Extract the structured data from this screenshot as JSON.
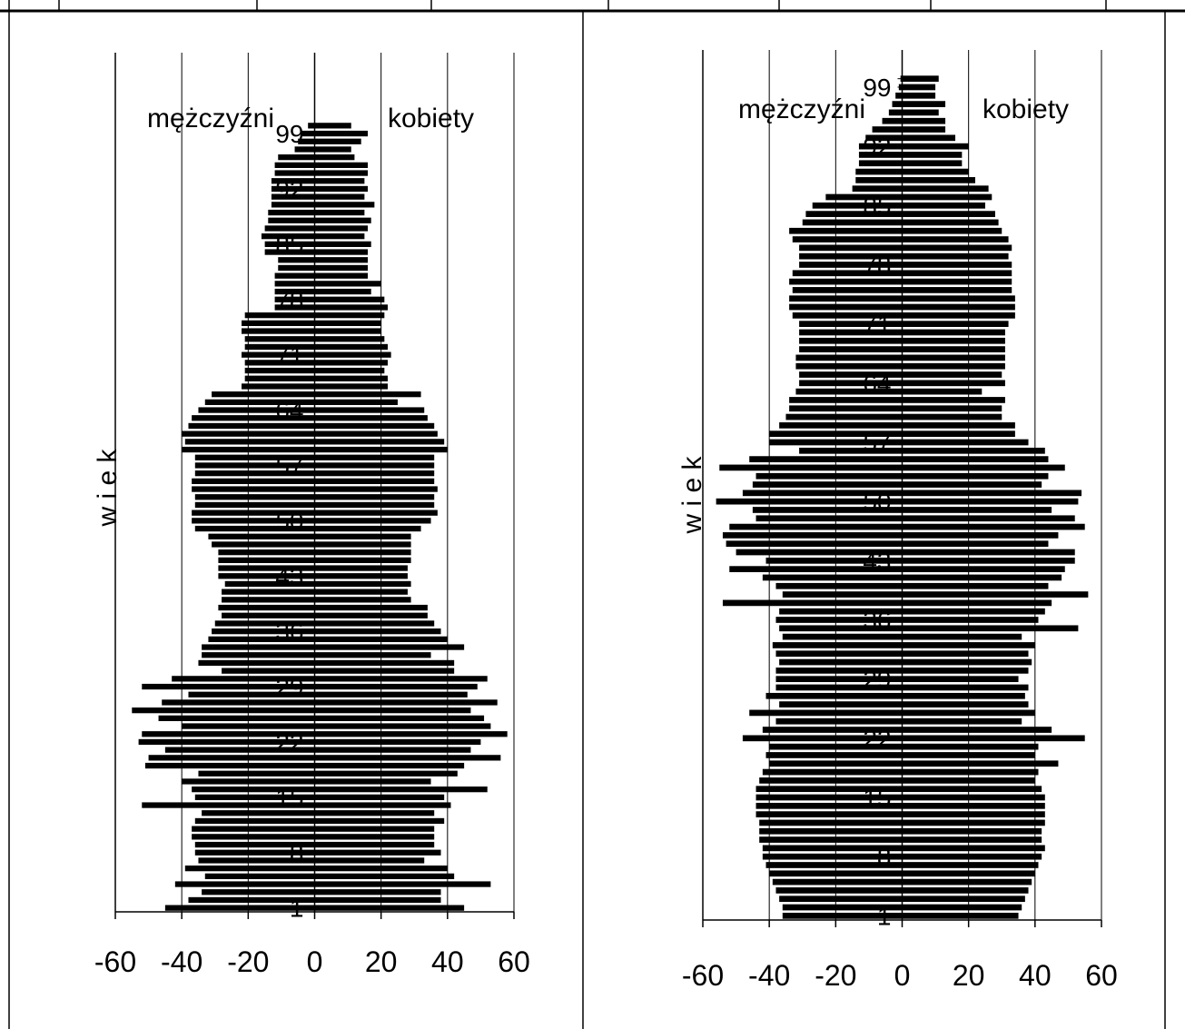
{
  "chart_data": [
    {
      "type": "bar",
      "orientation": "horizontal",
      "title": "",
      "ylabel": "w i e k",
      "xlabel": "",
      "xlim": [
        -60,
        60
      ],
      "xticks": [
        -60,
        -40,
        -20,
        0,
        20,
        40,
        60
      ],
      "ytick_labels": [
        "1",
        "8",
        "15",
        "22",
        "29",
        "36",
        "43",
        "50",
        "57",
        "64",
        "71",
        "78",
        "85",
        "92",
        "99"
      ],
      "grid": "vertical",
      "annotations": [
        "mężczyźni",
        "kobiety"
      ],
      "ages": [
        1,
        2,
        3,
        4,
        5,
        6,
        7,
        8,
        9,
        10,
        11,
        12,
        13,
        14,
        15,
        16,
        17,
        18,
        19,
        20,
        21,
        22,
        23,
        24,
        25,
        26,
        27,
        28,
        29,
        30,
        31,
        32,
        33,
        34,
        35,
        36,
        37,
        38,
        39,
        40,
        41,
        42,
        43,
        44,
        45,
        46,
        47,
        48,
        49,
        50,
        51,
        52,
        53,
        54,
        55,
        56,
        57,
        58,
        59,
        60,
        61,
        62,
        63,
        64,
        65,
        66,
        67,
        68,
        69,
        70,
        71,
        72,
        73,
        74,
        75,
        76,
        77,
        78,
        79,
        80,
        81,
        82,
        83,
        84,
        85,
        86,
        87,
        88,
        89,
        90,
        91,
        92,
        93,
        94,
        95,
        96,
        97,
        98,
        99,
        100
      ],
      "series": [
        {
          "name": "mężczyźni",
          "values": [
            -45,
            -38,
            -34,
            -42,
            -33,
            -39,
            -35,
            -36,
            -36,
            -37,
            -37,
            -36,
            -34,
            -52,
            -36,
            -37,
            -40,
            -35,
            -51,
            -50,
            -45,
            -53,
            -52,
            -40,
            -47,
            -55,
            -46,
            -38,
            -52,
            -43,
            -28,
            -35,
            -34,
            -34,
            -32,
            -31,
            -30,
            -28,
            -29,
            -28,
            -28,
            -27,
            -29,
            -29,
            -29,
            -29,
            -31,
            -32,
            -36,
            -37,
            -37,
            -36,
            -36,
            -37,
            -37,
            -36,
            -36,
            -36,
            -40,
            -39,
            -40,
            -38,
            -37,
            -35,
            -33,
            -31,
            -22,
            -21,
            -21,
            -21,
            -22,
            -21,
            -21,
            -22,
            -22,
            -21,
            -12,
            -12,
            -12,
            -12,
            -12,
            -11,
            -11,
            -15,
            -15,
            -16,
            -15,
            -14,
            -14,
            -13,
            -13,
            -13,
            -13,
            -12,
            -12,
            -11,
            -6,
            -5,
            -4,
            -2
          ]
        },
        {
          "name": "kobiety",
          "values": [
            45,
            38,
            38,
            53,
            42,
            40,
            33,
            38,
            36,
            36,
            36,
            39,
            36,
            41,
            39,
            52,
            35,
            43,
            45,
            56,
            47,
            50,
            58,
            53,
            51,
            47,
            55,
            46,
            49,
            52,
            42,
            42,
            35,
            45,
            40,
            38,
            36,
            34,
            34,
            29,
            28,
            29,
            28,
            28,
            29,
            29,
            29,
            29,
            32,
            35,
            37,
            36,
            36,
            37,
            36,
            36,
            36,
            36,
            40,
            39,
            37,
            36,
            34,
            33,
            25,
            32,
            22,
            22,
            21,
            22,
            23,
            22,
            21,
            20,
            20,
            21,
            22,
            21,
            17,
            20,
            16,
            16,
            16,
            16,
            17,
            15,
            16,
            17,
            15,
            18,
            15,
            16,
            15,
            16,
            16,
            12,
            11,
            14,
            16,
            11
          ]
        }
      ]
    },
    {
      "type": "bar",
      "orientation": "horizontal",
      "title": "",
      "ylabel": "w i e k",
      "xlabel": "",
      "xlim": [
        -60,
        60
      ],
      "xticks": [
        -60,
        -40,
        -20,
        0,
        20,
        40,
        60
      ],
      "ytick_labels": [
        "1",
        "8",
        "15",
        "22",
        "29",
        "36",
        "43",
        "50",
        "57",
        "64",
        "71",
        "78",
        "85",
        "92",
        "99"
      ],
      "grid": "vertical",
      "annotations": [
        "mężczyźni",
        "kobiety"
      ],
      "ages": [
        1,
        2,
        3,
        4,
        5,
        6,
        7,
        8,
        9,
        10,
        11,
        12,
        13,
        14,
        15,
        16,
        17,
        18,
        19,
        20,
        21,
        22,
        23,
        24,
        25,
        26,
        27,
        28,
        29,
        30,
        31,
        32,
        33,
        34,
        35,
        36,
        37,
        38,
        39,
        40,
        41,
        42,
        43,
        44,
        45,
        46,
        47,
        48,
        49,
        50,
        51,
        52,
        53,
        54,
        55,
        56,
        57,
        58,
        59,
        60,
        61,
        62,
        63,
        64,
        65,
        66,
        67,
        68,
        69,
        70,
        71,
        72,
        73,
        74,
        75,
        76,
        77,
        78,
        79,
        80,
        81,
        82,
        83,
        84,
        85,
        86,
        87,
        88,
        89,
        90,
        91,
        92,
        93,
        94,
        95,
        96,
        97,
        98,
        99,
        100
      ],
      "series": [
        {
          "name": "mężczyźni",
          "values": [
            -36,
            -36,
            -37,
            -38,
            -39,
            -40,
            -41,
            -42,
            -42,
            -43,
            -43,
            -43,
            -44,
            -44,
            -44,
            -44,
            -43,
            -42,
            -40,
            -41,
            -40,
            -48,
            -42,
            -38,
            -46,
            -37,
            -41,
            -38,
            -38,
            -38,
            -37,
            -38,
            -39,
            -36,
            -37,
            -38,
            -37,
            -54,
            -36,
            -38,
            -42,
            -52,
            -41,
            -50,
            -53,
            -54,
            -52,
            -44,
            -45,
            -56,
            -48,
            -45,
            -44,
            -55,
            -46,
            -31,
            -40,
            -40,
            -37,
            -35,
            -34,
            -34,
            -32,
            -31,
            -31,
            -32,
            -32,
            -31,
            -31,
            -31,
            -31,
            -33,
            -34,
            -34,
            -33,
            -34,
            -33,
            -31,
            -31,
            -31,
            -33,
            -34,
            -30,
            -29,
            -27,
            -23,
            -15,
            -14,
            -14,
            -13,
            -13,
            -13,
            -11,
            -9,
            -6,
            -4,
            -3,
            -2,
            -1,
            -0.5
          ]
        },
        {
          "name": "kobiety",
          "values": [
            35,
            36,
            37,
            38,
            39,
            40,
            41,
            42,
            43,
            42,
            42,
            43,
            43,
            43,
            43,
            42,
            40,
            41,
            47,
            40,
            41,
            55,
            45,
            36,
            40,
            38,
            37,
            38,
            35,
            38,
            39,
            38,
            40,
            36,
            53,
            41,
            43,
            45,
            56,
            44,
            48,
            49,
            52,
            52,
            44,
            47,
            55,
            52,
            45,
            53,
            54,
            42,
            44,
            49,
            44,
            43,
            38,
            34,
            34,
            30,
            30,
            31,
            24,
            31,
            30,
            31,
            31,
            31,
            31,
            31,
            32,
            34,
            34,
            34,
            33,
            33,
            33,
            33,
            32,
            33,
            32,
            30,
            29,
            28,
            25,
            27,
            26,
            22,
            20,
            18,
            18,
            20,
            16,
            13,
            13,
            11,
            13,
            10,
            10,
            11
          ]
        }
      ]
    }
  ]
}
